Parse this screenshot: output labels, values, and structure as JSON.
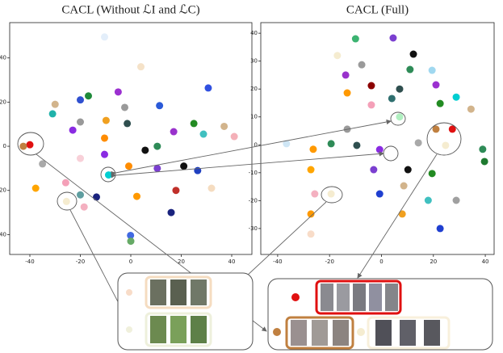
{
  "chart_data": [
    {
      "type": "scatter",
      "title": "CACL (Without ℒI and ℒC)",
      "xlim": [
        -48,
        48
      ],
      "ylim": [
        -49,
        56
      ],
      "xticks": [
        -40,
        -20,
        0,
        20,
        40
      ],
      "yticks": [
        -40,
        -20,
        0,
        20,
        40
      ],
      "x": [
        -10.4,
        4,
        -5,
        -16.8,
        -20,
        -30,
        30.7,
        11.4,
        -2.4,
        -31,
        -9.8,
        -1.4,
        25,
        37,
        41,
        28.8,
        17,
        5.7,
        10.5,
        -40,
        -42.6,
        -35,
        -20,
        -10.4,
        -10.4,
        -0.8,
        10.5,
        21,
        26.5,
        -20,
        -8.8,
        -25.8,
        -37.7,
        -20,
        -25.5,
        -13.6,
        2.4,
        17.9,
        32,
        16,
        -18.5,
        -0.1,
        0,
        -23
      ],
      "y": [
        49.5,
        36,
        24.6,
        22.8,
        21,
        19,
        26.4,
        18.4,
        17.6,
        14.7,
        11.7,
        10.3,
        10.3,
        9,
        4.4,
        5.5,
        6.6,
        -1.8,
        0,
        0.7,
        0,
        -8,
        11,
        3.7,
        -3.7,
        -9,
        -10,
        -9,
        -11,
        -5.5,
        -13,
        -16.5,
        -19,
        -22,
        -25,
        -23,
        -22.7,
        -20,
        -19,
        -30,
        -27.5,
        -40.4,
        -43,
        7.3
      ],
      "colors": [
        "#e3eefa",
        "#f5e2c8",
        "#9b30d0",
        "#1e8a3a",
        "#3050d0",
        "#d2b48c",
        "#3050e0",
        "#2a5ad8",
        "#9a9a9a",
        "#20b2aa",
        "#f0a020",
        "#2f4f4f",
        "#228b22",
        "#d2b48c",
        "#f4b0b8",
        "#40c0c0",
        "#9932cc",
        "#111111",
        "#2e8b57",
        "#e01010",
        "#c08040",
        "#a9a9a9",
        "#999999",
        "#ff8c00",
        "#8a2be2",
        "#ff8c00",
        "#7b3fd0",
        "#111111",
        "#2040c0",
        "#f8d0d8",
        "#00ced1",
        "#f4a0b8",
        "#ffa500",
        "#5f9ea0",
        "#f5ecd0",
        "#1a237e",
        "#ff9900",
        "#c0302a",
        "#f5dcc0",
        "#1a237e",
        "#f4b0c0",
        "#4169e1",
        "#66aa66",
        "#8a2be2"
      ]
    },
    {
      "type": "scatter",
      "title": "CACL (Full)",
      "xlim": [
        -46.5,
        43.4
      ],
      "ylim": [
        -39.3,
        43.8
      ],
      "xticks": [
        -40,
        -20,
        0,
        20,
        40
      ],
      "yticks": [
        -30,
        -20,
        -10,
        0,
        10,
        20,
        30,
        40
      ],
      "x": [
        -10,
        4.5,
        12.3,
        -17,
        -7.6,
        11,
        19.5,
        -13.8,
        -3.9,
        7,
        21,
        -13.2,
        4,
        22.6,
        28.8,
        34.5,
        -3.9,
        7,
        -13.2,
        -19.4,
        27.3,
        21,
        24.7,
        14.2,
        -0.7,
        -9.5,
        -26.3,
        -36.6,
        -27.2,
        -3,
        10.2,
        19.5,
        39.7,
        39,
        -25.7,
        -19.4,
        -0.7,
        8.6,
        18,
        28.8,
        -27.2,
        8,
        22.6,
        -27.2
      ],
      "y": [
        38,
        38.3,
        32.5,
        32,
        28.7,
        27,
        26.7,
        25,
        21.2,
        20,
        21.5,
        18.6,
        16.6,
        14.8,
        17.1,
        12.8,
        14.3,
        10,
        5.6,
        0.4,
        5.6,
        5.6,
        -0.2,
        0.7,
        -1.7,
        -0.2,
        -1.6,
        0.4,
        -8.9,
        -8.9,
        -8.9,
        -10.3,
        -6,
        -1.6,
        -17.6,
        -17.6,
        -17.6,
        -14.7,
        -19.9,
        -19.9,
        -24.8,
        -24.8,
        -30,
        -32
      ],
      "colors": [
        "#3cb371",
        "#7b3fd0",
        "#111111",
        "#f5ecd0",
        "#9a9a9a",
        "#2e8b57",
        "#a0d8f0",
        "#9932cc",
        "#8b0000",
        "#2f4f4f",
        "#9b30d0",
        "#ff9900",
        "#2f6f6f",
        "#228b22",
        "#00ced1",
        "#d2b48c",
        "#f4a0b8",
        "#b0f0c0",
        "#9a9a9a",
        "#2e8b57",
        "#e01010",
        "#c08040",
        "#f5ecd0",
        "#a9a9a9",
        "#8a2be2",
        "#2f4f4f",
        "#ff9900",
        "#cfe6f5",
        "#ffa500",
        "#7b3fd0",
        "#111111",
        "#228b22",
        "#1e7a30",
        "#2e8b57",
        "#f4b0c0",
        "#f5ecd0",
        "#1f3fd0",
        "#d2b48c",
        "#40c0c0",
        "#a0a0a0",
        "#ff9900",
        "#f0a020",
        "#1f3fd0",
        "#f8dcc8"
      ]
    }
  ]
}
